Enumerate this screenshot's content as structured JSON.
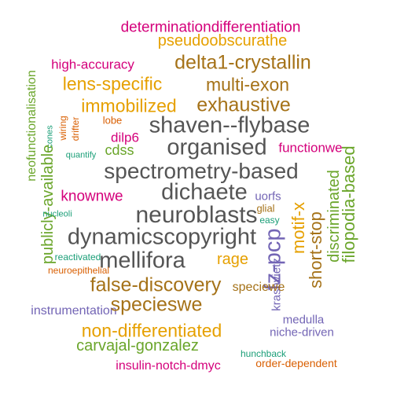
{
  "palette": {
    "magenta": "#d4007b",
    "orange": "#e6a000",
    "brown": "#a57218",
    "gray": "#555555",
    "green": "#6aa52a",
    "purple": "#7365b5",
    "teal": "#1a9e77",
    "red_orange": "#d95f02"
  },
  "words": [
    {
      "text": "determinationdifferentiation",
      "color": "#d4007b",
      "orientation": "horizontal"
    },
    {
      "text": "pseudoobscurathe",
      "color": "#e6a000",
      "orientation": "horizontal"
    },
    {
      "text": "high-accuracy",
      "color": "#d4007b",
      "orientation": "horizontal"
    },
    {
      "text": "delta1-crystallin",
      "color": "#a57218",
      "orientation": "horizontal"
    },
    {
      "text": "lens-specific",
      "color": "#e6a000",
      "orientation": "horizontal"
    },
    {
      "text": "multi-exon",
      "color": "#a57218",
      "orientation": "horizontal"
    },
    {
      "text": "neofunctionalisation",
      "color": "#6aa52a",
      "orientation": "vertical"
    },
    {
      "text": "immobilized",
      "color": "#e6a000",
      "orientation": "horizontal"
    },
    {
      "text": "exhaustive",
      "color": "#a57218",
      "orientation": "horizontal"
    },
    {
      "text": "lobe",
      "color": "#d95f02",
      "orientation": "horizontal"
    },
    {
      "text": "shaven--flybase",
      "color": "#555555",
      "orientation": "horizontal"
    },
    {
      "text": "cones",
      "color": "#1a9e77",
      "orientation": "vertical"
    },
    {
      "text": "wiring",
      "color": "#d95f02",
      "orientation": "vertical"
    },
    {
      "text": "drifter",
      "color": "#d95f02",
      "orientation": "vertical"
    },
    {
      "text": "dilp6",
      "color": "#d4007b",
      "orientation": "horizontal"
    },
    {
      "text": "quantify",
      "color": "#1a9e77",
      "orientation": "horizontal"
    },
    {
      "text": "cdss",
      "color": "#6aa52a",
      "orientation": "horizontal"
    },
    {
      "text": "organised",
      "color": "#555555",
      "orientation": "horizontal"
    },
    {
      "text": "functionwe",
      "color": "#d4007b",
      "orientation": "horizontal"
    },
    {
      "text": "publicly-available",
      "color": "#6aa52a",
      "orientation": "vertical"
    },
    {
      "text": "spectrometry-based",
      "color": "#555555",
      "orientation": "horizontal"
    },
    {
      "text": "knownwe",
      "color": "#d4007b",
      "orientation": "horizontal"
    },
    {
      "text": "dichaete",
      "color": "#555555",
      "orientation": "horizontal"
    },
    {
      "text": "uorfs",
      "color": "#7365b5",
      "orientation": "horizontal"
    },
    {
      "text": "filopodia-based",
      "color": "#6aa52a",
      "orientation": "vertical"
    },
    {
      "text": "glial",
      "color": "#a57218",
      "orientation": "horizontal"
    },
    {
      "text": "nucleoli",
      "color": "#1a9e77",
      "orientation": "horizontal"
    },
    {
      "text": "discriminated",
      "color": "#6aa52a",
      "orientation": "vertical"
    },
    {
      "text": "neuroblasts",
      "color": "#555555",
      "orientation": "horizontal"
    },
    {
      "text": "easy",
      "color": "#1a9e77",
      "orientation": "horizontal"
    },
    {
      "text": "dynamicscopyright",
      "color": "#555555",
      "orientation": "horizontal"
    },
    {
      "text": "motif-x",
      "color": "#e6a000",
      "orientation": "vertical"
    },
    {
      "text": "short-stop",
      "color": "#a57218",
      "orientation": "vertical"
    },
    {
      "text": "reactivated",
      "color": "#1a9e77",
      "orientation": "horizontal"
    },
    {
      "text": "mellifora",
      "color": "#555555",
      "orientation": "horizontal"
    },
    {
      "text": "rage",
      "color": "#e6a000",
      "orientation": "horizontal"
    },
    {
      "text": "fz-pcp",
      "color": "#7365b5",
      "orientation": "vertical"
    },
    {
      "text": "neuroepithelial",
      "color": "#d95f02",
      "orientation": "horizontal"
    },
    {
      "text": "false-discovery",
      "color": "#a57218",
      "orientation": "horizontal"
    },
    {
      "text": "krasavietz",
      "color": "#7365b5",
      "orientation": "vertical"
    },
    {
      "text": "speciewe",
      "color": "#a57218",
      "orientation": "horizontal"
    },
    {
      "text": "instrumentation",
      "color": "#7365b5",
      "orientation": "horizontal"
    },
    {
      "text": "specieswe",
      "color": "#a57218",
      "orientation": "horizontal"
    },
    {
      "text": "medulla",
      "color": "#7365b5",
      "orientation": "horizontal"
    },
    {
      "text": "non-differentiated",
      "color": "#e6a000",
      "orientation": "horizontal"
    },
    {
      "text": "niche-driven",
      "color": "#7365b5",
      "orientation": "horizontal"
    },
    {
      "text": "carvajal-gonzalez",
      "color": "#6aa52a",
      "orientation": "horizontal"
    },
    {
      "text": "hunchback",
      "color": "#1a9e77",
      "orientation": "horizontal"
    },
    {
      "text": "insulin-notch-dmyc",
      "color": "#d4007b",
      "orientation": "horizontal"
    },
    {
      "text": "order-dependent",
      "color": "#d95f02",
      "orientation": "horizontal"
    }
  ]
}
